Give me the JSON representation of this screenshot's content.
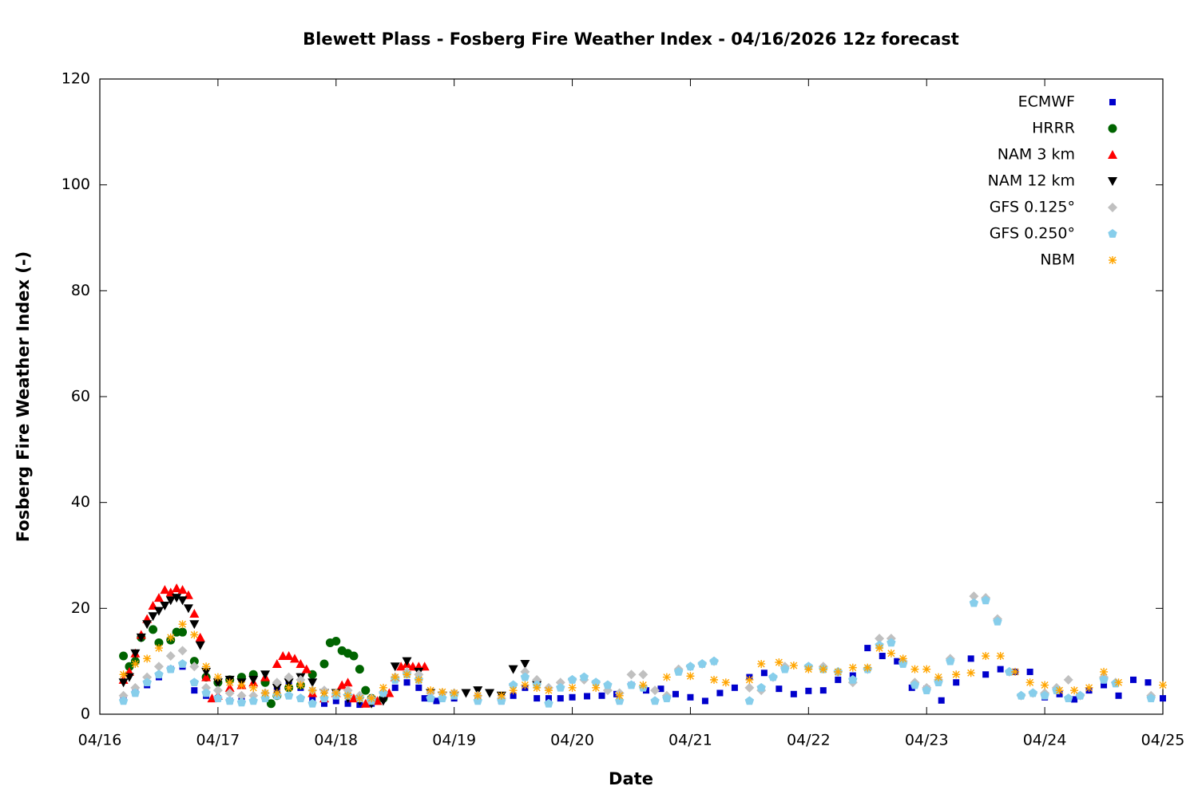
{
  "chart_data": {
    "type": "scatter",
    "title": "Blewett Plass - Fosberg Fire Weather Index - 04/16/2026 12z forecast",
    "x_label": "Date",
    "y_label": "Fosberg Fire Weather Index (-)",
    "xlim": [
      0,
      9
    ],
    "ylim": [
      0,
      120
    ],
    "xticks": [
      {
        "value": 0,
        "label": "04/16"
      },
      {
        "value": 1,
        "label": "04/17"
      },
      {
        "value": 2,
        "label": "04/18"
      },
      {
        "value": 3,
        "label": "04/19"
      },
      {
        "value": 4,
        "label": "04/20"
      },
      {
        "value": 5,
        "label": "04/21"
      },
      {
        "value": 6,
        "label": "04/22"
      },
      {
        "value": 7,
        "label": "04/23"
      },
      {
        "value": 8,
        "label": "04/24"
      },
      {
        "value": 9,
        "label": "04/25"
      }
    ],
    "yticks": [
      0,
      20,
      40,
      60,
      80,
      100,
      120
    ],
    "grid": false,
    "legend": "top-right",
    "series": [
      {
        "name": "ECMWF",
        "color": "#0000cc",
        "marker": "square",
        "x": [
          0.2,
          0.3,
          0.4,
          0.5,
          0.6,
          0.7,
          0.8,
          0.9,
          1.0,
          1.1,
          1.2,
          1.4,
          1.5,
          1.6,
          1.7,
          1.8,
          1.9,
          2.0,
          2.1,
          2.2,
          2.3,
          2.4,
          2.5,
          2.6,
          2.7,
          2.75,
          2.85,
          3.0,
          3.2,
          3.4,
          3.5,
          3.6,
          3.7,
          3.8,
          3.9,
          4.0,
          4.125,
          4.25,
          4.375,
          4.5,
          4.625,
          4.75,
          4.875,
          5.0,
          5.125,
          5.25,
          5.375,
          5.5,
          5.625,
          5.75,
          5.875,
          6.0,
          6.125,
          6.25,
          6.375,
          6.5,
          6.625,
          6.75,
          6.875,
          7.0,
          7.125,
          7.25,
          7.375,
          7.5,
          7.625,
          7.75,
          7.875,
          8.0,
          8.125,
          8.25,
          8.375,
          8.5,
          8.625,
          8.75,
          8.875,
          9.0
        ],
        "values": [
          3,
          4,
          5.5,
          7,
          8.5,
          9,
          4.5,
          3.5,
          3,
          2.5,
          2.5,
          3,
          4.5,
          5.5,
          5,
          3,
          2,
          2.5,
          2,
          1.8,
          2,
          3,
          5,
          6,
          5,
          3,
          2.5,
          3,
          3,
          2.5,
          3.5,
          5,
          3,
          3,
          3,
          3.2,
          3.4,
          3.5,
          3.8,
          5.5,
          4.5,
          4.8,
          3.8,
          3.2,
          2.5,
          4,
          5,
          7,
          7.8,
          4.8,
          3.8,
          4.4,
          4.5,
          6.5,
          7.3,
          12.5,
          11,
          10,
          5,
          4.8,
          2.6,
          6,
          10.5,
          7.5,
          8.5,
          8,
          8,
          3.2,
          3.8,
          2.8,
          4.5,
          5.5,
          3.5,
          6.5,
          6,
          3
        ]
      },
      {
        "name": "HRRR",
        "color": "#006400",
        "marker": "circle",
        "x": [
          0.2,
          0.25,
          0.3,
          0.35,
          0.45,
          0.5,
          0.6,
          0.65,
          0.7,
          0.8,
          0.9,
          1.0,
          1.1,
          1.2,
          1.3,
          1.4,
          1.45,
          1.5,
          1.6,
          1.7,
          1.8,
          1.9,
          1.95,
          2.0,
          2.05,
          2.1,
          2.15,
          2.2,
          2.25,
          2.3,
          2.4
        ],
        "values": [
          11,
          9,
          10,
          14.5,
          16,
          13.5,
          14,
          15.5,
          15.5,
          10,
          7,
          6,
          6.5,
          7,
          7.5,
          6,
          2,
          3.5,
          5,
          5.5,
          7.5,
          9.5,
          13.5,
          13.8,
          12,
          11.5,
          11,
          8.5,
          4.5,
          3,
          3
        ]
      },
      {
        "name": "NAM 3 km",
        "color": "#ff0000",
        "marker": "triangle-up",
        "x": [
          0.2,
          0.25,
          0.3,
          0.35,
          0.4,
          0.45,
          0.5,
          0.55,
          0.6,
          0.65,
          0.7,
          0.75,
          0.8,
          0.85,
          0.9,
          0.95,
          1.0,
          1.1,
          1.2,
          1.3,
          1.4,
          1.5,
          1.55,
          1.6,
          1.65,
          1.7,
          1.75,
          1.8,
          1.9,
          2.0,
          2.05,
          2.1,
          2.15,
          2.25,
          2.35,
          2.45,
          2.5,
          2.55,
          2.6,
          2.65,
          2.7,
          2.75
        ],
        "values": [
          6.5,
          8,
          11.5,
          15,
          18,
          20.5,
          22,
          23.5,
          23,
          23.8,
          23.5,
          22.5,
          19,
          14.5,
          7,
          3,
          3.5,
          5,
          5.5,
          6,
          7,
          9.5,
          11,
          11,
          10.5,
          9.5,
          8.5,
          4,
          3,
          4,
          5.5,
          6,
          3,
          2,
          2.5,
          4,
          7,
          9,
          9.5,
          9,
          9,
          9
        ]
      },
      {
        "name": "NAM 12 km",
        "color": "#000000",
        "marker": "triangle-down",
        "x": [
          0.2,
          0.25,
          0.3,
          0.35,
          0.4,
          0.45,
          0.5,
          0.55,
          0.6,
          0.65,
          0.7,
          0.75,
          0.8,
          0.85,
          0.9,
          1.0,
          1.1,
          1.2,
          1.3,
          1.4,
          1.5,
          1.6,
          1.7,
          1.8,
          1.9,
          2.0,
          2.1,
          2.2,
          2.3,
          2.4,
          2.5,
          2.6,
          2.7,
          2.8,
          2.9,
          3.0,
          3.1,
          3.2,
          3.3,
          3.4,
          3.5,
          3.6,
          3.7
        ],
        "values": [
          6,
          7,
          11.5,
          14.5,
          17,
          18.5,
          19.5,
          20.5,
          21.5,
          22,
          21.5,
          20,
          17,
          13,
          8,
          6,
          6.5,
          6,
          6.5,
          7.5,
          5,
          6,
          7,
          6,
          4,
          4,
          3,
          2.5,
          2,
          2.5,
          9,
          10,
          8,
          4,
          3.5,
          3.5,
          4,
          4.5,
          4,
          3.5,
          8.5,
          9.5,
          5.5
        ]
      },
      {
        "name": "GFS 0.125°",
        "color": "#c0c0c0",
        "marker": "diamond",
        "x": [
          0.2,
          0.3,
          0.4,
          0.5,
          0.6,
          0.7,
          0.8,
          0.9,
          1.0,
          1.1,
          1.2,
          1.3,
          1.4,
          1.5,
          1.6,
          1.7,
          1.8,
          1.9,
          2.0,
          2.1,
          2.2,
          2.3,
          2.4,
          2.5,
          2.6,
          2.7,
          2.8,
          2.9,
          3.0,
          3.2,
          3.4,
          3.5,
          3.6,
          3.7,
          3.8,
          3.9,
          4.0,
          4.1,
          4.2,
          4.3,
          4.4,
          4.5,
          4.6,
          4.7,
          4.8,
          4.9,
          5.0,
          5.1,
          5.2,
          5.5,
          5.6,
          5.7,
          5.8,
          6.0,
          6.125,
          6.25,
          6.375,
          6.5,
          6.6,
          6.7,
          6.8,
          6.9,
          7.0,
          7.1,
          7.2,
          7.4,
          7.5,
          7.6,
          7.7,
          7.8,
          7.9,
          8.0,
          8.1,
          8.2,
          8.3,
          8.5,
          8.6,
          8.9
        ],
        "values": [
          3.5,
          5,
          7,
          9,
          11,
          12,
          9,
          5,
          4.5,
          4,
          3.5,
          3.5,
          4,
          6,
          7,
          6.5,
          4.5,
          4.5,
          4,
          4.5,
          3.5,
          3,
          4,
          7,
          8,
          7.5,
          4,
          4,
          4,
          3.5,
          3,
          5.5,
          8,
          6.5,
          5,
          6,
          6.5,
          6.5,
          6,
          4.5,
          4,
          7.5,
          7.5,
          4.5,
          3.5,
          8.5,
          9,
          9.5,
          10,
          5,
          4.5,
          7,
          9,
          9,
          9,
          8,
          6,
          8.5,
          14.3,
          14.3,
          10,
          6,
          5,
          6.5,
          10.5,
          22.3,
          22,
          18,
          8,
          3.5,
          4,
          4,
          5,
          6.5,
          3.5,
          7,
          6,
          3.5
        ]
      },
      {
        "name": "GFS 0.250°",
        "color": "#87ceeb",
        "marker": "pentagon",
        "x": [
          0.2,
          0.3,
          0.4,
          0.5,
          0.6,
          0.7,
          0.8,
          0.9,
          1.0,
          1.1,
          1.2,
          1.3,
          1.4,
          1.5,
          1.6,
          1.7,
          1.8,
          1.9,
          2.0,
          2.1,
          2.2,
          2.3,
          2.4,
          2.5,
          2.6,
          2.7,
          2.8,
          2.9,
          3.0,
          3.2,
          3.4,
          3.5,
          3.6,
          3.7,
          3.8,
          3.9,
          4.0,
          4.1,
          4.2,
          4.3,
          4.4,
          4.5,
          4.6,
          4.7,
          4.8,
          4.9,
          5.0,
          5.1,
          5.2,
          5.5,
          5.6,
          5.7,
          5.8,
          6.0,
          6.125,
          6.25,
          6.375,
          6.5,
          6.6,
          6.7,
          6.8,
          6.9,
          7.0,
          7.1,
          7.2,
          7.4,
          7.5,
          7.6,
          7.7,
          7.8,
          7.9,
          8.0,
          8.1,
          8.2,
          8.3,
          8.5,
          8.6,
          8.9
        ],
        "values": [
          2.5,
          4,
          6,
          7.5,
          8.5,
          9.5,
          6,
          4,
          3,
          2.5,
          2.2,
          2.5,
          3,
          3.5,
          3.5,
          3,
          2,
          3,
          3.5,
          3.5,
          3,
          2.5,
          4,
          6.5,
          7.5,
          6.5,
          3,
          3,
          3.5,
          2.5,
          2.5,
          5.5,
          7,
          5.5,
          2,
          5,
          6.5,
          7,
          6,
          5.5,
          2.5,
          5.5,
          5,
          2.5,
          3,
          8,
          9,
          9.5,
          10,
          2.5,
          5,
          7,
          8.5,
          9,
          8.5,
          8,
          6.5,
          8.5,
          13,
          13.5,
          9.5,
          5.5,
          4.5,
          6,
          10,
          21,
          21.5,
          17.5,
          8,
          3.5,
          4,
          3.5,
          4.5,
          3,
          3.5,
          6.5,
          5.8,
          3
        ]
      },
      {
        "name": "NBM",
        "color": "#ffa500",
        "marker": "star",
        "x": [
          0.2,
          0.3,
          0.4,
          0.5,
          0.6,
          0.7,
          0.8,
          0.9,
          1.0,
          1.1,
          1.2,
          1.3,
          1.4,
          1.5,
          1.6,
          1.7,
          1.8,
          1.9,
          2.0,
          2.1,
          2.2,
          2.3,
          2.4,
          2.5,
          2.6,
          2.7,
          2.8,
          2.9,
          3.0,
          3.2,
          3.4,
          3.5,
          3.6,
          3.7,
          3.8,
          4.0,
          4.2,
          4.4,
          4.6,
          4.8,
          5.0,
          5.2,
          5.3,
          5.5,
          5.6,
          5.75,
          5.875,
          6.0,
          6.125,
          6.25,
          6.375,
          6.5,
          6.6,
          6.7,
          6.8,
          6.9,
          7.0,
          7.1,
          7.25,
          7.375,
          7.5,
          7.625,
          7.75,
          7.875,
          8.0,
          8.125,
          8.25,
          8.375,
          8.5,
          8.625,
          9.0
        ],
        "values": [
          7.5,
          9.5,
          10.5,
          12.5,
          14.5,
          17,
          15,
          9,
          7,
          6,
          5.5,
          5,
          4,
          4,
          5,
          5.5,
          4.5,
          4,
          4,
          3.5,
          3,
          3,
          5,
          7,
          7.5,
          6.5,
          4.5,
          4.2,
          4,
          3.5,
          3.5,
          4.5,
          5.5,
          5,
          4.5,
          5,
          5,
          3.5,
          5.5,
          7,
          7.2,
          6.5,
          6,
          6.5,
          9.5,
          9.8,
          9.2,
          8.5,
          8.5,
          8,
          8.8,
          8.8,
          12.5,
          11.5,
          10.5,
          8.5,
          8.5,
          7,
          7.5,
          7.8,
          11,
          11,
          8,
          6,
          5.5,
          4.5,
          4.5,
          5,
          8,
          6,
          5.5
        ]
      }
    ]
  }
}
